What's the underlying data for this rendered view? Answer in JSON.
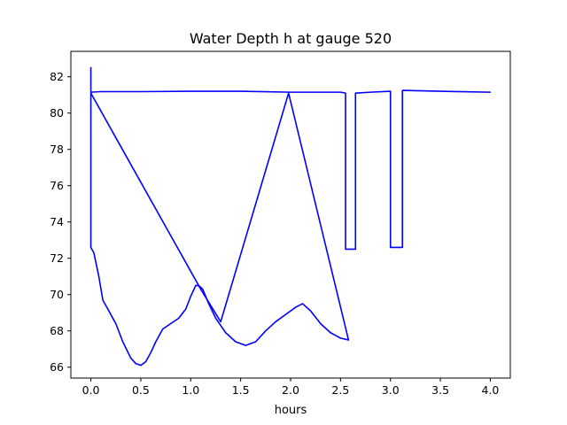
{
  "chart_data": {
    "type": "line",
    "title": "Water Depth h at gauge 520",
    "xlabel": "hours",
    "ylabel": "",
    "xlim": [
      -0.2,
      4.2
    ],
    "ylim": [
      65.4,
      83.4
    ],
    "xticks": [
      0.0,
      0.5,
      1.0,
      1.5,
      2.0,
      2.5,
      3.0,
      3.5,
      4.0
    ],
    "xtick_labels": [
      "0.0",
      "0.5",
      "1.0",
      "1.5",
      "2.0",
      "2.5",
      "3.0",
      "3.5",
      "4.0"
    ],
    "yticks": [
      66,
      68,
      70,
      72,
      74,
      76,
      78,
      80,
      82
    ],
    "ytick_labels": [
      "66",
      "68",
      "70",
      "72",
      "74",
      "76",
      "78",
      "80",
      "82"
    ],
    "grid": false,
    "legend": false,
    "series": [
      {
        "color": "#0000ff",
        "x": [
          0.0,
          0.0,
          0.0,
          0.1,
          0.2,
          0.5,
          1.0,
          1.5,
          2.0,
          2.5,
          2.55,
          2.55,
          2.65,
          2.65,
          2.8,
          3.0,
          3.0,
          3.12,
          3.12,
          3.5,
          4.0
        ],
        "y": [
          82.5,
          81.15,
          81.15,
          81.18,
          81.18,
          81.18,
          81.2,
          81.2,
          81.15,
          81.15,
          81.1,
          72.5,
          72.5,
          81.1,
          81.15,
          81.2,
          72.6,
          72.6,
          81.25,
          81.2,
          81.15
        ]
      },
      {
        "color": "#0000ff",
        "x": [
          0.0,
          0.0,
          0.03,
          0.08,
          0.12,
          0.18,
          0.25,
          0.32,
          0.4,
          0.45,
          0.5,
          0.55,
          0.6,
          0.65,
          0.72,
          0.8,
          0.88,
          0.95,
          1.0,
          1.05,
          1.08,
          1.12,
          1.18,
          1.25,
          1.3,
          1.35,
          1.45,
          1.55,
          1.65,
          1.75,
          1.85,
          1.95,
          2.05,
          2.12,
          2.2,
          2.3,
          2.4,
          2.5,
          2.58
        ],
        "y": [
          81.1,
          72.6,
          72.3,
          71.0,
          69.7,
          69.1,
          68.4,
          67.4,
          66.5,
          66.2,
          66.1,
          66.3,
          66.8,
          67.4,
          68.1,
          68.4,
          68.7,
          69.2,
          69.9,
          70.5,
          70.5,
          70.3,
          69.5,
          68.7,
          68.3,
          67.9,
          67.4,
          67.2,
          67.4,
          68.0,
          68.5,
          68.9,
          69.3,
          69.5,
          69.1,
          68.4,
          67.9,
          67.6,
          67.5
        ]
      },
      {
        "color": "#0000ff",
        "x": [
          0.0,
          1.1,
          1.3,
          1.98,
          2.58
        ],
        "y": [
          81.1,
          70.3,
          68.5,
          81.1,
          67.5
        ]
      }
    ]
  }
}
